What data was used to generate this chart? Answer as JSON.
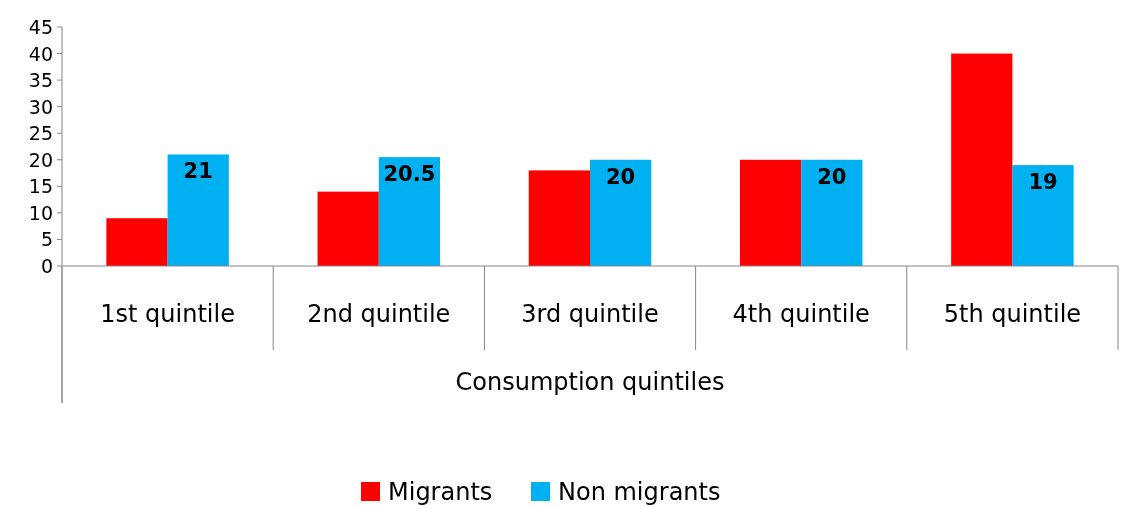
{
  "chart_data": {
    "type": "bar",
    "xlabel": "Consumption quintiles",
    "categories": [
      "1st quintile",
      "2nd quintile",
      "3rd quintile",
      "4th quintile",
      "5th quintile"
    ],
    "series": [
      {
        "name": "Migrants",
        "color": "#ff0000",
        "values": [
          9,
          14,
          18,
          20,
          40
        ]
      },
      {
        "name": "Non migrants",
        "color": "#00b0f0",
        "values": [
          21,
          20.5,
          20,
          20,
          19
        ],
        "value_labels": [
          "21",
          "20.5",
          "20",
          "20",
          "19"
        ]
      }
    ],
    "ylim": [
      0,
      45
    ],
    "yticks": [
      0,
      5,
      10,
      15,
      20,
      25,
      30,
      35,
      40,
      45
    ],
    "grid": false,
    "legend": "bottom"
  }
}
